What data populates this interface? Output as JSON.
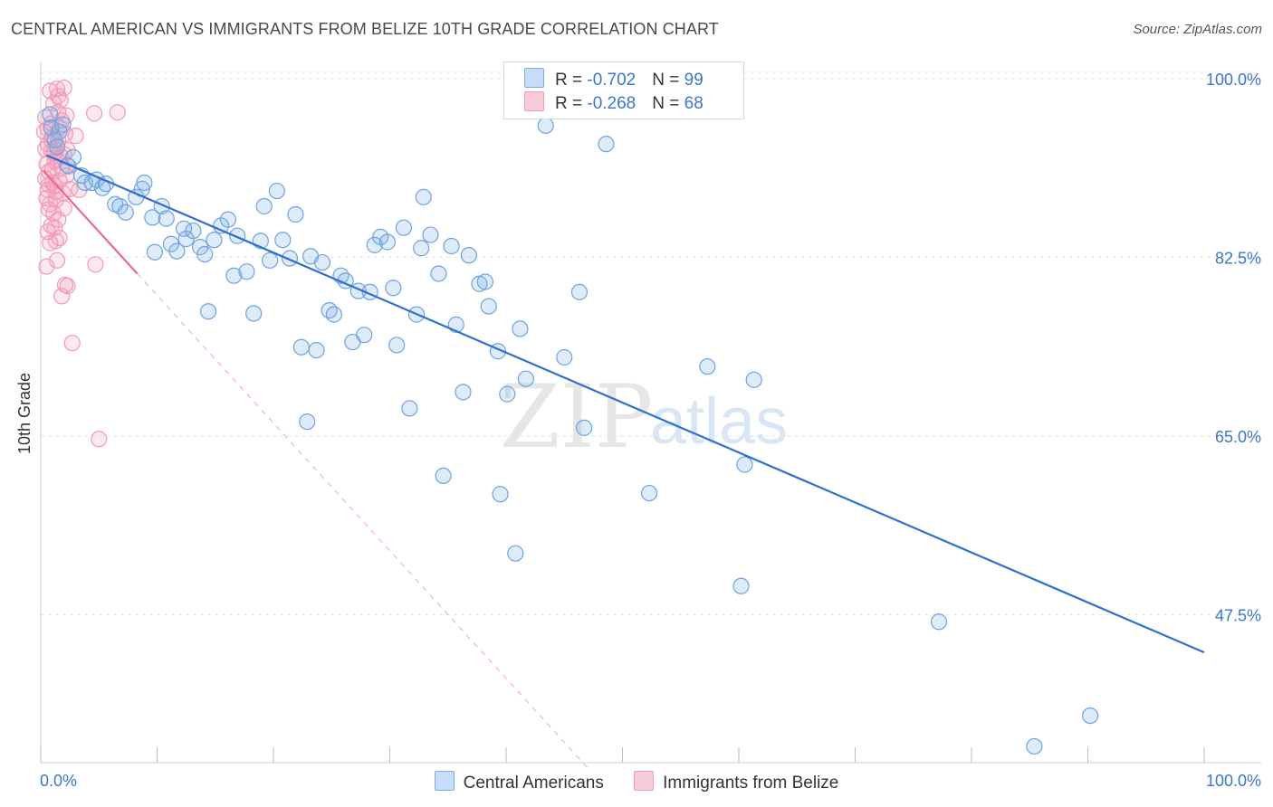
{
  "title": "CENTRAL AMERICAN VS IMMIGRANTS FROM BELIZE 10TH GRADE CORRELATION CHART",
  "source": "Source: ZipAtlas.com",
  "legend": {
    "rows": [
      {
        "r_label": "R = ",
        "r_value": "-0.702",
        "n_label": "N = ",
        "n_value": "99"
      },
      {
        "r_label": "R = ",
        "r_value": "-0.268",
        "n_label": "N = ",
        "n_value": "68"
      }
    ]
  },
  "watermark": {
    "zip": "ZIP",
    "atlas": "atlas"
  },
  "chart_data": {
    "type": "scatter",
    "title": "CENTRAL AMERICAN VS IMMIGRANTS FROM BELIZE 10TH GRADE CORRELATION CHART",
    "xlabel": "",
    "ylabel": "10th Grade",
    "xlim": [
      0,
      100
    ],
    "ylim": [
      33,
      101.5
    ],
    "x_tick_labels": [
      "0.0%",
      "100.0%"
    ],
    "y_ticks": [
      47.5,
      65.0,
      82.5,
      100.0
    ],
    "y_tick_labels": [
      "47.5%",
      "65.0%",
      "82.5%",
      "100.0%"
    ],
    "grid": true,
    "legend_position": "top-center",
    "series": [
      {
        "name": "Central Americans",
        "color": "#7aaee8",
        "line_color": "#2f6fd0",
        "trend": {
          "x": [
            0.5,
            100
          ],
          "y": [
            92.5,
            43.8
          ]
        },
        "points": [
          [
            0.8,
            96.5
          ],
          [
            0.9,
            95.2
          ],
          [
            1.2,
            94.0
          ],
          [
            1.6,
            94.8
          ],
          [
            1.4,
            93.3
          ],
          [
            1.9,
            95.5
          ],
          [
            2.3,
            91.5
          ],
          [
            2.8,
            92.3
          ],
          [
            3.5,
            90.5
          ],
          [
            3.8,
            89.8
          ],
          [
            4.4,
            89.8
          ],
          [
            4.8,
            90.1
          ],
          [
            5.3,
            89.3
          ],
          [
            5.6,
            89.7
          ],
          [
            6.4,
            87.7
          ],
          [
            6.8,
            87.5
          ],
          [
            7.3,
            86.9
          ],
          [
            8.2,
            88.4
          ],
          [
            8.7,
            89.2
          ],
          [
            8.9,
            89.8
          ],
          [
            9.6,
            86.4
          ],
          [
            9.8,
            83.0
          ],
          [
            10.4,
            87.5
          ],
          [
            10.8,
            86.3
          ],
          [
            11.2,
            83.8
          ],
          [
            11.7,
            83.1
          ],
          [
            12.3,
            85.3
          ],
          [
            12.5,
            84.3
          ],
          [
            13.1,
            85.1
          ],
          [
            13.7,
            83.5
          ],
          [
            14.1,
            82.8
          ],
          [
            14.4,
            77.2
          ],
          [
            14.9,
            84.2
          ],
          [
            15.5,
            85.6
          ],
          [
            16.1,
            86.2
          ],
          [
            16.6,
            80.7
          ],
          [
            16.9,
            84.6
          ],
          [
            17.7,
            81.1
          ],
          [
            18.3,
            77.0
          ],
          [
            18.9,
            84.1
          ],
          [
            19.2,
            87.5
          ],
          [
            19.7,
            82.2
          ],
          [
            20.3,
            89.0
          ],
          [
            20.8,
            84.2
          ],
          [
            21.4,
            82.4
          ],
          [
            21.9,
            86.7
          ],
          [
            22.4,
            73.7
          ],
          [
            22.9,
            66.4
          ],
          [
            23.2,
            82.6
          ],
          [
            23.7,
            73.4
          ],
          [
            24.2,
            82.0
          ],
          [
            24.8,
            77.3
          ],
          [
            25.2,
            76.9
          ],
          [
            25.8,
            80.7
          ],
          [
            26.2,
            80.2
          ],
          [
            26.8,
            74.2
          ],
          [
            27.3,
            79.2
          ],
          [
            27.8,
            74.9
          ],
          [
            28.3,
            79.1
          ],
          [
            28.7,
            83.7
          ],
          [
            29.2,
            84.5
          ],
          [
            29.8,
            84.0
          ],
          [
            30.3,
            79.5
          ],
          [
            30.6,
            73.9
          ],
          [
            31.2,
            85.4
          ],
          [
            31.7,
            67.7
          ],
          [
            32.3,
            76.9
          ],
          [
            32.9,
            88.4
          ],
          [
            32.7,
            83.4
          ],
          [
            33.5,
            84.7
          ],
          [
            34.2,
            80.9
          ],
          [
            34.6,
            61.1
          ],
          [
            35.3,
            83.6
          ],
          [
            35.7,
            75.9
          ],
          [
            36.3,
            69.3
          ],
          [
            36.8,
            82.7
          ],
          [
            37.7,
            79.9
          ],
          [
            38.2,
            80.1
          ],
          [
            38.5,
            77.7
          ],
          [
            39.3,
            73.3
          ],
          [
            39.5,
            59.3
          ],
          [
            40.1,
            69.1
          ],
          [
            40.8,
            53.5
          ],
          [
            41.2,
            75.5
          ],
          [
            41.7,
            70.6
          ],
          [
            43.4,
            95.4
          ],
          [
            45.0,
            72.7
          ],
          [
            46.3,
            79.1
          ],
          [
            46.7,
            65.8
          ],
          [
            48.6,
            93.6
          ],
          [
            50.2,
            100.8
          ],
          [
            52.3,
            59.4
          ],
          [
            57.3,
            71.8
          ],
          [
            60.2,
            50.3
          ],
          [
            60.5,
            62.2
          ],
          [
            61.3,
            70.5
          ],
          [
            77.2,
            46.8
          ],
          [
            85.4,
            34.6
          ],
          [
            90.2,
            37.6
          ]
        ]
      },
      {
        "name": "Immigrants from Belize",
        "color": "#f19ab8",
        "line_color": "#e8689a",
        "trend": {
          "x": [
            0.2,
            8.3
          ],
          "y": [
            91.0,
            80.9
          ]
        },
        "trend_dashed": {
          "x": [
            8.3,
            47.0
          ],
          "y": [
            80.9,
            32.5
          ]
        },
        "points": [
          [
            0.3,
            94.8
          ],
          [
            0.4,
            93.1
          ],
          [
            0.5,
            91.6
          ],
          [
            0.4,
            90.2
          ],
          [
            0.6,
            89.1
          ],
          [
            0.5,
            88.3
          ],
          [
            0.7,
            87.2
          ],
          [
            0.6,
            85.0
          ],
          [
            0.8,
            83.9
          ],
          [
            0.5,
            81.6
          ],
          [
            0.9,
            95.6
          ],
          [
            1.0,
            94.3
          ],
          [
            1.1,
            92.7
          ],
          [
            1.0,
            91.1
          ],
          [
            1.2,
            89.5
          ],
          [
            1.3,
            88.1
          ],
          [
            1.1,
            86.8
          ],
          [
            1.2,
            85.4
          ],
          [
            1.3,
            84.1
          ],
          [
            1.4,
            82.2
          ],
          [
            0.8,
            98.8
          ],
          [
            1.1,
            97.6
          ],
          [
            1.5,
            96.7
          ],
          [
            1.6,
            95.2
          ],
          [
            1.5,
            93.9
          ],
          [
            1.7,
            92.4
          ],
          [
            1.8,
            91.2
          ],
          [
            1.6,
            90.0
          ],
          [
            1.9,
            88.8
          ],
          [
            2.0,
            87.3
          ],
          [
            1.4,
            99.0
          ],
          [
            1.7,
            97.9
          ],
          [
            2.2,
            96.4
          ],
          [
            1.8,
            95.9
          ],
          [
            2.1,
            94.6
          ],
          [
            2.3,
            93.0
          ],
          [
            2.0,
            92.6
          ],
          [
            2.4,
            91.4
          ],
          [
            2.2,
            90.5
          ],
          [
            2.5,
            89.2
          ],
          [
            0.6,
            93.6
          ],
          [
            0.9,
            92.9
          ],
          [
            1.2,
            91.9
          ],
          [
            0.7,
            90.9
          ],
          [
            1.0,
            89.8
          ],
          [
            1.3,
            88.9
          ],
          [
            0.8,
            87.7
          ],
          [
            1.5,
            86.2
          ],
          [
            0.9,
            85.6
          ],
          [
            1.6,
            84.4
          ],
          [
            0.4,
            96.2
          ],
          [
            0.6,
            95.1
          ],
          [
            0.9,
            94.0
          ],
          [
            1.2,
            93.2
          ],
          [
            1.4,
            92.1
          ],
          [
            0.7,
            89.6
          ],
          [
            1.8,
            78.7
          ],
          [
            2.1,
            79.8
          ],
          [
            2.3,
            79.7
          ],
          [
            2.7,
            74.1
          ],
          [
            3.0,
            94.4
          ],
          [
            3.3,
            89.1
          ],
          [
            4.6,
            96.6
          ],
          [
            4.7,
            81.8
          ],
          [
            5.0,
            64.7
          ],
          [
            6.6,
            96.7
          ],
          [
            2.0,
            99.1
          ],
          [
            1.5,
            98.3
          ]
        ]
      }
    ]
  }
}
